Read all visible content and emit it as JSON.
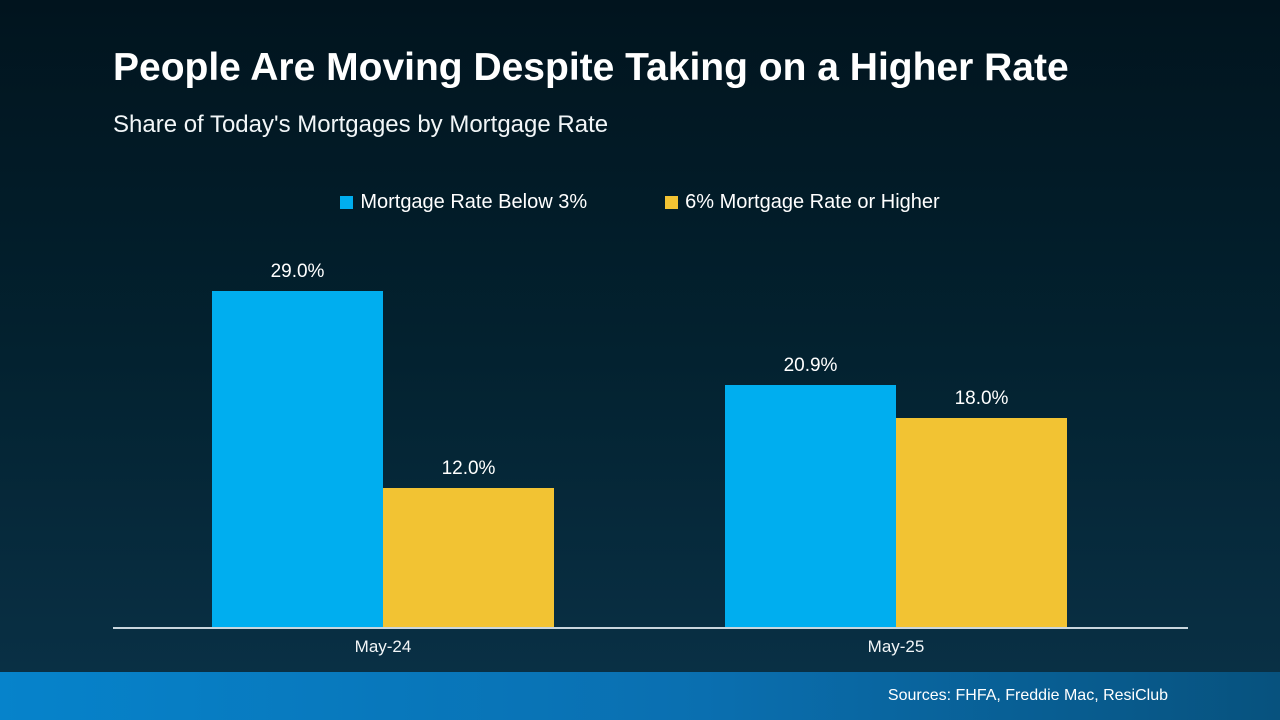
{
  "header": {
    "title": "People Are Moving Despite Taking on a Higher Rate",
    "subtitle": "Share of Today's Mortgages by Mortgage Rate"
  },
  "chart_data": {
    "type": "bar",
    "title": "People Are Moving Despite Taking on a Higher Rate",
    "subtitle": "Share of Today's Mortgages by Mortgage Rate",
    "categories": [
      "May-24",
      "May-25"
    ],
    "series": [
      {
        "name": "Mortgage Rate Below 3%",
        "color": "#00aeef",
        "values": [
          29.0,
          20.9
        ],
        "value_labels": [
          "29.0%",
          "20.9%"
        ]
      },
      {
        "name": "6% Mortgage Rate or Higher",
        "color": "#f2c333",
        "values": [
          12.0,
          18.0
        ],
        "value_labels": [
          "12.0%",
          "18.0%"
        ]
      }
    ],
    "xlabel": "",
    "ylabel": "",
    "ylim": [
      0,
      33
    ],
    "grid": false,
    "legend_position": "top-center",
    "axis_line_color": "#c9d6de"
  },
  "footer": {
    "sources": "Sources: FHFA, Freddie Mac, ResiClub"
  },
  "colors": {
    "background_top": "#01141e",
    "background_bottom": "#0a3248",
    "footer_left": "#0683cb",
    "footer_right": "#07527e",
    "text": "#ffffff"
  }
}
